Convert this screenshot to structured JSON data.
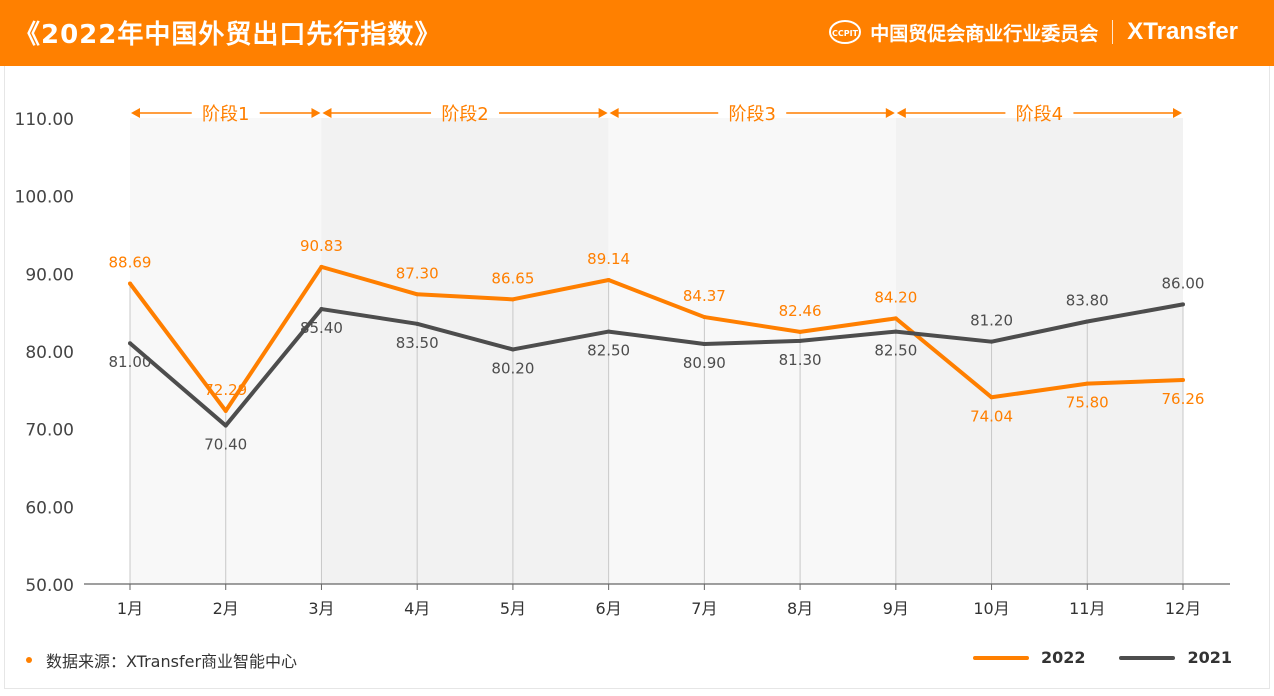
{
  "header": {
    "title": "《2022年中国外贸出口先行指数》",
    "org": "中国贸促会商业行业委员会",
    "logo_text": "CCPIT",
    "brand": "XTransfer"
  },
  "source": "数据来源：XTransfer商业智能中心",
  "colors": {
    "s2022": "#ff7f00",
    "s2021": "#4d4d4d",
    "header": "#ff8000"
  },
  "chart_data": {
    "type": "line",
    "categories": [
      "1月",
      "2月",
      "3月",
      "4月",
      "5月",
      "6月",
      "7月",
      "8月",
      "9月",
      "10月",
      "11月",
      "12月"
    ],
    "ylim": [
      50,
      110
    ],
    "yticks": [
      "50.00",
      "60.00",
      "70.00",
      "80.00",
      "90.00",
      "100.00",
      "110.00"
    ],
    "grid": false,
    "legend": "bottom-right",
    "stages": [
      {
        "label": "阶段1",
        "from": 0,
        "to": 2
      },
      {
        "label": "阶段2",
        "from": 2,
        "to": 5
      },
      {
        "label": "阶段3",
        "from": 5,
        "to": 8
      },
      {
        "label": "阶段4",
        "from": 8,
        "to": 11
      }
    ],
    "series": [
      {
        "name": "2022",
        "values": [
          88.69,
          72.29,
          90.83,
          87.3,
          86.65,
          89.14,
          84.37,
          82.46,
          84.2,
          74.04,
          75.8,
          76.26
        ],
        "labels": [
          "88.69",
          "72.29",
          "90.83",
          "87.30",
          "86.65",
          "89.14",
          "84.37",
          "82.46",
          "84.20",
          "74.04",
          "75.80",
          "76.26"
        ]
      },
      {
        "name": "2021",
        "values": [
          81.0,
          70.4,
          85.4,
          83.5,
          80.2,
          82.5,
          80.9,
          81.3,
          82.5,
          81.2,
          83.8,
          86.0
        ],
        "labels": [
          "81.00",
          "70.40",
          "85.40",
          "83.50",
          "80.20",
          "82.50",
          "80.90",
          "81.30",
          "82.50",
          "81.20",
          "83.80",
          "86.00"
        ]
      }
    ]
  }
}
